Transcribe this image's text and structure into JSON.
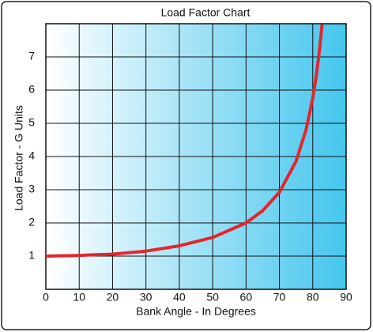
{
  "chart_data": {
    "type": "line",
    "title": "Load Factor Chart",
    "x_label": "Bank Angle - In Degrees",
    "y_label": "Load Factor - G Units",
    "x": [
      0,
      10,
      20,
      30,
      40,
      50,
      60,
      65,
      70,
      75,
      78,
      80,
      81,
      82,
      82.8
    ],
    "series": [
      {
        "name": "Load Factor",
        "color": "#e3262b",
        "values": [
          1,
          1.02,
          1.06,
          1.15,
          1.31,
          1.56,
          2,
          2.37,
          2.92,
          3.86,
          4.81,
          5.76,
          6.39,
          7.19,
          7.98
        ]
      }
    ],
    "xlim": [
      0,
      90
    ],
    "xticks": [
      0,
      10,
      20,
      30,
      40,
      50,
      60,
      70,
      80,
      90
    ],
    "ylim": [
      0,
      8
    ],
    "yticks": [
      1,
      2,
      3,
      4,
      5,
      6,
      7
    ],
    "grid": true
  }
}
